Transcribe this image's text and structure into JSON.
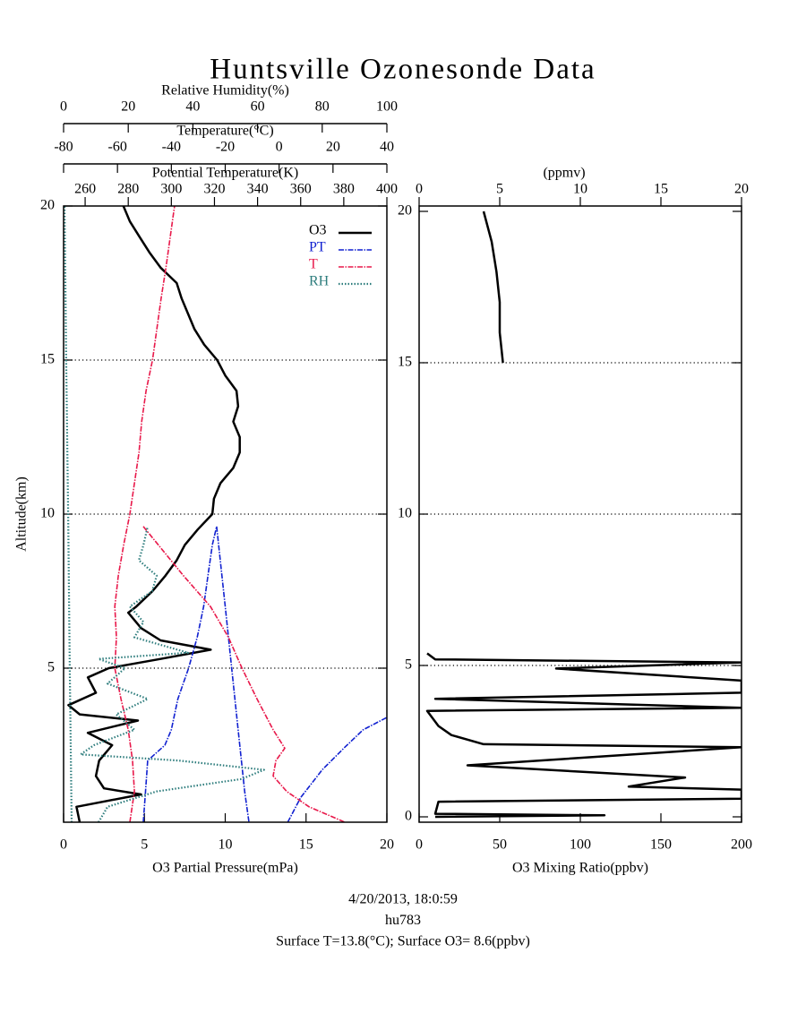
{
  "chart_data": [
    {
      "type": "line",
      "title": "Huntsville Ozonesonde Data",
      "ylabel": "Altitude(km)",
      "ylim": [
        0,
        20
      ],
      "yticks": [
        5,
        10,
        15,
        20
      ],
      "xlabel": "O3 Partial Pressure(mPa)",
      "xlim": [
        0,
        20
      ],
      "xticks": [
        0,
        5,
        10,
        15,
        20
      ],
      "x2label": "Relative Humidity(%)",
      "x2lim": [
        0,
        100
      ],
      "x2ticks": [
        0,
        20,
        40,
        60,
        80,
        100
      ],
      "x3label": "Temperature(°C)",
      "x3lim": [
        -80,
        40
      ],
      "x3ticks": [
        -80,
        -60,
        -40,
        -20,
        0,
        20,
        40
      ],
      "x4label": "Potential Temperature(K)",
      "x4lim": [
        250,
        400
      ],
      "x4ticks": [
        260,
        280,
        300,
        320,
        340,
        360,
        380,
        400
      ],
      "grid": true,
      "legend": "upper right",
      "annotations": [
        "4/20/2013, 18:0:59",
        "hu783",
        "Surface T=13.8(°C); Surface O3= 8.6(ppbv)"
      ],
      "series": [
        {
          "name": "O3",
          "color": "#000000",
          "axis": "x",
          "linestyle": "solid",
          "altitude": [
            0,
            0.5,
            0.9,
            1.1,
            1.5,
            2.0,
            2.5,
            2.9,
            3.3,
            3.5,
            3.8,
            4.2,
            4.7,
            5.0,
            5.3,
            5.6,
            5.9,
            6.3,
            6.8,
            7.0,
            7.5,
            8.0,
            8.5,
            9.0,
            9.5,
            10.0,
            10.5,
            11.0,
            11.5,
            12.0,
            12.5,
            13.0,
            13.5,
            14.0,
            14.5,
            15.0,
            15.5,
            16.0,
            16.5,
            17.0,
            17.5,
            18.0,
            18.5,
            19.0,
            19.5,
            20.0
          ],
          "values": [
            1.0,
            0.8,
            4.8,
            2.5,
            2.0,
            2.2,
            3.0,
            1.5,
            4.6,
            1.0,
            0.3,
            2.0,
            1.5,
            2.8,
            6.0,
            9.1,
            6.0,
            4.8,
            4.0,
            4.5,
            5.5,
            6.3,
            7.0,
            7.5,
            8.3,
            9.2,
            9.3,
            9.7,
            10.5,
            10.9,
            10.9,
            10.5,
            10.8,
            10.7,
            10.0,
            9.5,
            8.7,
            8.1,
            7.7,
            7.3,
            7.0,
            6.0,
            5.3,
            4.7,
            4.1,
            3.7
          ]
        },
        {
          "name": "PT",
          "color": "#1020d0",
          "axis": "x4",
          "linestyle": "dashdot",
          "altitude": [
            0,
            1,
            2,
            2.5,
            3,
            4,
            5,
            6,
            7,
            8,
            9,
            9.6,
            null,
            9.6,
            7,
            5,
            3,
            1,
            0,
            null,
            0,
            0.8,
            1.7,
            2.4,
            3.0,
            3.4
          ],
          "values": [
            287,
            288,
            289,
            297,
            300,
            303,
            308,
            312,
            315,
            317,
            319,
            321,
            null,
            321,
            325,
            328,
            331,
            334,
            336,
            null,
            354,
            360,
            370,
            380,
            389,
            400
          ]
        },
        {
          "name": "T",
          "color": "#e8184a",
          "axis": "x3",
          "linestyle": "dashdot",
          "altitude": [
            0,
            1,
            2,
            3,
            4,
            5,
            6,
            7,
            8,
            9,
            10,
            11,
            12,
            13,
            14,
            15,
            16,
            17,
            18,
            19,
            20,
            null,
            9.6,
            8,
            7,
            6,
            5,
            4,
            3,
            2.4,
            2,
            1.5,
            1,
            0.5,
            0
          ],
          "values": [
            -55.4,
            -53.7,
            -54.4,
            -56,
            -58.7,
            -61,
            -60.4,
            -61,
            -59.7,
            -57.7,
            -55.4,
            -53.7,
            -52,
            -51,
            -49.4,
            -47,
            -45.4,
            -43.8,
            -42,
            -40.4,
            -38.8,
            null,
            -50.4,
            -35.5,
            -25.5,
            -18.8,
            -13.8,
            -8.2,
            -2.2,
            2.1,
            -1.2,
            -2.2,
            2.8,
            11.1,
            24.4
          ]
        },
        {
          "name": "RH",
          "color": "#2e7d7d",
          "axis": "x2",
          "linestyle": "dotted",
          "altitude": [
            0,
            0.5,
            1.0,
            1.4,
            1.7,
            2.0,
            2.2,
            2.5,
            3.0,
            3.5,
            4.0,
            4.5,
            5.0,
            5.3,
            5.5,
            6.0,
            6.5,
            7.0,
            7.5,
            8.0,
            8.5,
            9.0,
            9.6,
            null,
            0,
            5,
            10,
            15,
            20
          ],
          "values": [
            10.8,
            13.6,
            28.8,
            55,
            62,
            35.7,
            5.3,
            9.4,
            21.9,
            16.3,
            26,
            13.6,
            19,
            10.8,
            38.5,
            21.9,
            24.7,
            20.5,
            27.4,
            28.8,
            23.3,
            24.7,
            26,
            null,
            2.5,
            1.9,
            1.4,
            0.8,
            0.3
          ]
        }
      ]
    },
    {
      "type": "line",
      "ylim": [
        0,
        20
      ],
      "yticks": [
        0,
        5,
        10,
        15,
        20
      ],
      "xlabel": "O3 Mixing Ratio(ppbv)",
      "xlim": [
        0,
        200
      ],
      "xticks": [
        0,
        50,
        100,
        150,
        200
      ],
      "x2label": "(ppmv)",
      "x2lim": [
        0,
        20
      ],
      "x2ticks": [
        0,
        5,
        10,
        15,
        20
      ],
      "grid": true,
      "series": [
        {
          "color": "#000000",
          "axis": "x",
          "linestyle": "solid",
          "altitude": [
            0,
            0.05,
            0.1,
            0.5,
            0.6,
            0.9,
            1.0,
            1.3,
            1.7,
            2.3,
            2.4,
            2.7,
            3.0,
            3.5,
            3.6,
            3.9,
            4.1,
            4.3,
            4.5,
            4.9,
            5.1,
            5.2,
            5.4,
            null,
            15,
            16,
            17,
            18,
            19,
            20
          ],
          "values": [
            10,
            115,
            10,
            12,
            200,
            200,
            130,
            165,
            30,
            200,
            40,
            20,
            12,
            5,
            200,
            10,
            200,
            200,
            200,
            85,
            200,
            10,
            5,
            null,
            52,
            50,
            50,
            48,
            45,
            40
          ]
        }
      ]
    }
  ]
}
